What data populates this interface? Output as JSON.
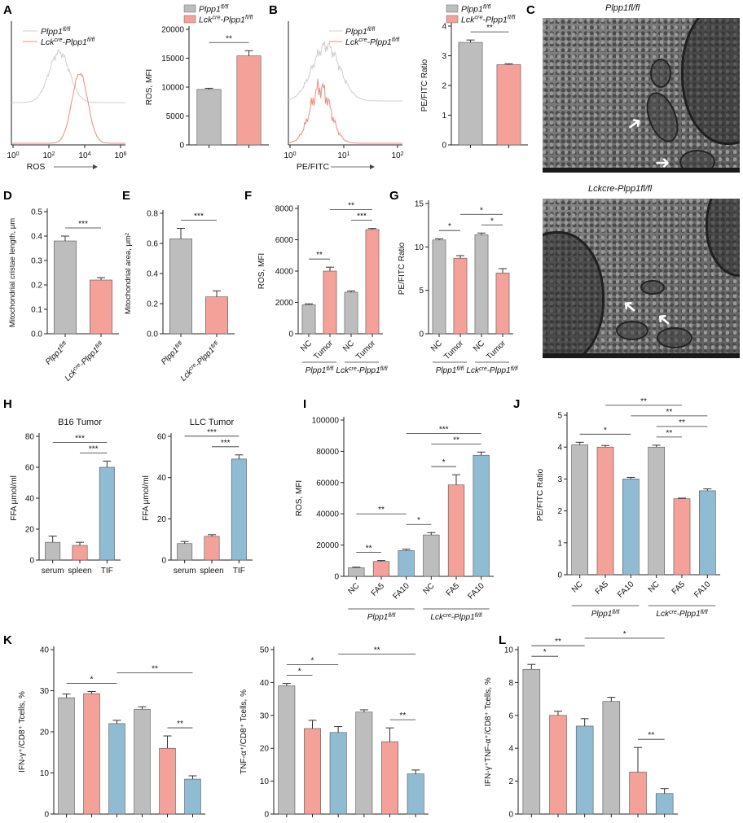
{
  "colors": {
    "gray": "#bdbdbd",
    "pink": "#f4a19a",
    "blue": "#8fbcd3",
    "flowGray": "#cfcfcf",
    "flowPink": "#f08a80"
  },
  "panel_letters": {
    "A": "A",
    "B": "B",
    "C": "C",
    "D": "D",
    "E": "E",
    "F": "F",
    "G": "G",
    "H": "H",
    "I": "I",
    "J": "J",
    "K": "K",
    "L": "L"
  },
  "labels": {
    "plpp1": "Plpp1",
    "plpp1_sup": "fl/fl",
    "lck": "Lck",
    "lck_sup": "cre",
    "dash": "-Plpp1",
    "plpp1_full": "Plpp1fl/fl",
    "lck_full": "Lckcre-Plpp1fl/fl"
  },
  "micrograph": {
    "top_title": "Plpp1fl/fl",
    "bottom_title": "Lckcre-Plpp1fl/fl",
    "top_arrows": [
      "arrow-1",
      "arrow-2"
    ],
    "bottom_arrows": [
      "arrow-1",
      "arrow-2"
    ]
  },
  "chart_data": [
    {
      "id": "A-flow",
      "type": "line",
      "xlabel": "ROS",
      "xticks": [
        "10^0",
        "10^2",
        "10^4",
        "10^6"
      ],
      "legend": [
        "Plpp1fl/fl",
        "Lckcre-Plpp1fl/fl"
      ]
    },
    {
      "id": "A-bar",
      "type": "bar",
      "ylabel": "ROS, MFI",
      "ylim": [
        0,
        20000
      ],
      "yticks": [
        0,
        5000,
        10000,
        15000,
        20000
      ],
      "categories": [
        "Plpp1fl/fl",
        "Lckcre-Plpp1fl/fl"
      ],
      "values": [
        9600,
        15400
      ],
      "errors": [
        200,
        900
      ],
      "legend": [
        "Plpp1fl/fl",
        "Lckcre-Plpp1fl/fl"
      ],
      "sig": [
        {
          "from": 0,
          "to": 1,
          "label": "**"
        }
      ]
    },
    {
      "id": "B-flow",
      "type": "line",
      "xlabel": "PE/FITC",
      "xticks": [
        "10^0",
        "10^1",
        "10^2"
      ],
      "legend": [
        "Plpp1fl/fl",
        "Lckcre-Plpp1fl/fl"
      ]
    },
    {
      "id": "B-bar",
      "type": "bar",
      "ylabel": "PE/FITC Ratio",
      "ylim": [
        0,
        4
      ],
      "yticks": [
        0,
        1,
        2,
        3,
        4
      ],
      "categories": [
        "Plpp1fl/fl",
        "Lckcre-Plpp1fl/fl"
      ],
      "values": [
        3.45,
        2.7
      ],
      "errors": [
        0.08,
        0.03
      ],
      "legend": [
        "Plpp1fl/fl",
        "Lckcre-Plpp1fl/fl"
      ],
      "sig": [
        {
          "from": 0,
          "to": 1,
          "label": "**"
        }
      ]
    },
    {
      "id": "D",
      "type": "bar",
      "ylabel": "Mitochondrial cristae length, μm",
      "ylim": [
        0,
        0.5
      ],
      "yticks": [
        "0.0",
        "0.1",
        "0.2",
        "0.3",
        "0.4",
        "0.5"
      ],
      "categories": [
        "Plpp1fl/fl",
        "Lckcre-Plpp1fl/fl"
      ],
      "values": [
        0.38,
        0.22
      ],
      "errors": [
        0.02,
        0.01
      ],
      "sig": [
        {
          "from": 0,
          "to": 1,
          "label": "***"
        }
      ]
    },
    {
      "id": "E",
      "type": "bar",
      "ylabel": "Mitochondrial area, μm²",
      "ylim": [
        0,
        0.8
      ],
      "yticks": [
        "0.0",
        "0.2",
        "0.4",
        "0.6",
        "0.8"
      ],
      "categories": [
        "Plpp1fl/fl",
        "Lckcre-Plpp1fl/fl"
      ],
      "values": [
        0.63,
        0.245
      ],
      "errors": [
        0.07,
        0.04
      ],
      "sig": [
        {
          "from": 0,
          "to": 1,
          "label": "***"
        }
      ]
    },
    {
      "id": "F",
      "type": "bar",
      "ylabel": "ROS, MFI",
      "ylim": [
        0,
        8000
      ],
      "yticks": [
        0,
        2000,
        4000,
        6000,
        8000
      ],
      "categories": [
        "NC",
        "Tumor",
        "NC",
        "Tumor"
      ],
      "groups": [
        "Plpp1fl/fl",
        "Lckcre-Plpp1fl/fl"
      ],
      "values": [
        1850,
        4000,
        2650,
        6650
      ],
      "errors": [
        60,
        250,
        80,
        70
      ],
      "sig": [
        {
          "from": 0,
          "to": 1,
          "label": "**"
        },
        {
          "from": 2,
          "to": 3,
          "label": "***"
        },
        {
          "from": 1,
          "to": 3,
          "label": "**"
        }
      ]
    },
    {
      "id": "G",
      "type": "bar",
      "ylabel": "PE/FITC Ratio",
      "ylim": [
        0,
        15
      ],
      "yticks": [
        0,
        5,
        10,
        15
      ],
      "categories": [
        "NC",
        "Tumor",
        "NC",
        "Tumor"
      ],
      "groups": [
        "Plpp1fl/fl",
        "Lckcre-Plpp1fl/fl"
      ],
      "values": [
        10.8,
        8.7,
        11.4,
        7.0
      ],
      "errors": [
        0.15,
        0.3,
        0.2,
        0.5
      ],
      "sig": [
        {
          "from": 0,
          "to": 1,
          "label": "*"
        },
        {
          "from": 2,
          "to": 3,
          "label": "*"
        },
        {
          "from": 1,
          "to": 3,
          "label": "*"
        }
      ]
    },
    {
      "id": "H1",
      "type": "bar",
      "title": "B16 Tumor",
      "ylabel": "FFA μmol/ml",
      "ylim": [
        0,
        80
      ],
      "yticks": [
        0,
        20,
        40,
        60,
        80
      ],
      "categories": [
        "serum",
        "spleen",
        "TIF"
      ],
      "values": [
        11.5,
        9.5,
        60
      ],
      "errors": [
        4,
        2,
        4
      ],
      "sig": [
        {
          "from": 1,
          "to": 2,
          "label": "***"
        },
        {
          "from": 0,
          "to": 2,
          "label": "***"
        }
      ]
    },
    {
      "id": "H2",
      "type": "bar",
      "title": "LLC Tumor",
      "ylabel": "FFA μmol/ml",
      "ylim": [
        0,
        60
      ],
      "yticks": [
        0,
        20,
        40,
        60
      ],
      "categories": [
        "serum",
        "spleen",
        "TIF"
      ],
      "values": [
        8,
        11.5,
        49
      ],
      "errors": [
        1,
        0.8,
        2
      ],
      "sig": [
        {
          "from": 1,
          "to": 2,
          "label": "***"
        },
        {
          "from": 0,
          "to": 2,
          "label": "***"
        }
      ]
    },
    {
      "id": "I",
      "type": "bar",
      "ylabel": "ROS, MFI",
      "ylim": [
        0,
        100000
      ],
      "yticks": [
        0,
        20000,
        40000,
        60000,
        80000,
        100000
      ],
      "categories": [
        "NC",
        "FA5",
        "FA10",
        "NC",
        "FA5",
        "FA10"
      ],
      "groups": [
        "Plpp1fl/fl",
        "Lckcre-Plpp1fl/fl"
      ],
      "values": [
        5500,
        9500,
        16500,
        26500,
        58500,
        77500
      ],
      "errors": [
        400,
        600,
        900,
        1500,
        6500,
        2000
      ],
      "sig": [
        {
          "from": 0,
          "to": 1,
          "label": "**"
        },
        {
          "from": 0,
          "to": 2,
          "label": "**"
        },
        {
          "from": 2,
          "to": 3,
          "label": "*"
        },
        {
          "from": 3,
          "to": 4,
          "label": "*"
        },
        {
          "from": 3,
          "to": 5,
          "label": "**"
        },
        {
          "from": 2,
          "to": 5,
          "label": "***"
        }
      ]
    },
    {
      "id": "J",
      "type": "bar",
      "ylabel": "PE/FITC Ratio",
      "ylim": [
        0,
        5
      ],
      "yticks": [
        0,
        1,
        2,
        3,
        4,
        5
      ],
      "categories": [
        "NC",
        "FA5",
        "FA10",
        "NC",
        "FA5",
        "FA10"
      ],
      "groups": [
        "Plpp1fl/fl",
        "Lckcre-Plpp1fl/fl"
      ],
      "values": [
        4.07,
        4.0,
        3.0,
        4.0,
        2.38,
        2.63
      ],
      "errors": [
        0.08,
        0.05,
        0.05,
        0.06,
        0.02,
        0.06
      ],
      "sig": [
        {
          "from": 0,
          "to": 2,
          "label": "*"
        },
        {
          "from": 3,
          "to": 4,
          "label": "**"
        },
        {
          "from": 3,
          "to": 5,
          "label": "**"
        },
        {
          "from": 2,
          "to": 5,
          "label": "**"
        },
        {
          "from": 1,
          "to": 4,
          "label": "**"
        }
      ]
    },
    {
      "id": "K1",
      "type": "bar",
      "ylabel": "IFN-γ⁺/CD8⁺ Tcells, %",
      "ylim": [
        0,
        40
      ],
      "yticks": [
        0,
        10,
        20,
        30,
        40
      ],
      "values": [
        28.3,
        29.3,
        22.0,
        25.5,
        16.0,
        8.5
      ],
      "errors": [
        0.9,
        0.5,
        0.8,
        0.6,
        3.0,
        0.8
      ],
      "sig": [
        {
          "from": 0,
          "to": 2,
          "label": "*"
        },
        {
          "from": 4,
          "to": 5,
          "label": "**"
        },
        {
          "from": 2,
          "to": 5,
          "label": "**"
        }
      ]
    },
    {
      "id": "K2",
      "type": "bar",
      "ylabel": "TNF-α⁺/CD8⁺ Tcells, %",
      "ylim": [
        0,
        50
      ],
      "yticks": [
        0,
        10,
        20,
        30,
        40,
        50
      ],
      "values": [
        39.0,
        26.0,
        24.8,
        31.0,
        22.0,
        12.2
      ],
      "errors": [
        0.7,
        2.5,
        1.8,
        0.7,
        4.2,
        1.2
      ],
      "sig": [
        {
          "from": 0,
          "to": 1,
          "label": "*"
        },
        {
          "from": 0,
          "to": 2,
          "label": "*"
        },
        {
          "from": 4,
          "to": 5,
          "label": "**"
        },
        {
          "from": 2,
          "to": 5,
          "label": "**"
        }
      ]
    },
    {
      "id": "L",
      "type": "bar",
      "ylabel": "IFN-γ⁺TNF-α⁺/CD8⁺ Tcells, %",
      "ylim": [
        0,
        10
      ],
      "yticks": [
        0,
        2,
        4,
        6,
        8,
        10
      ],
      "values": [
        8.8,
        6.0,
        5.35,
        6.85,
        2.55,
        1.25
      ],
      "errors": [
        0.3,
        0.25,
        0.45,
        0.25,
        1.5,
        0.3
      ],
      "sig": [
        {
          "from": 0,
          "to": 1,
          "label": "*"
        },
        {
          "from": 0,
          "to": 2,
          "label": "**"
        },
        {
          "from": 4,
          "to": 5,
          "label": "**"
        },
        {
          "from": 2,
          "to": 5,
          "label": "*"
        }
      ]
    }
  ]
}
